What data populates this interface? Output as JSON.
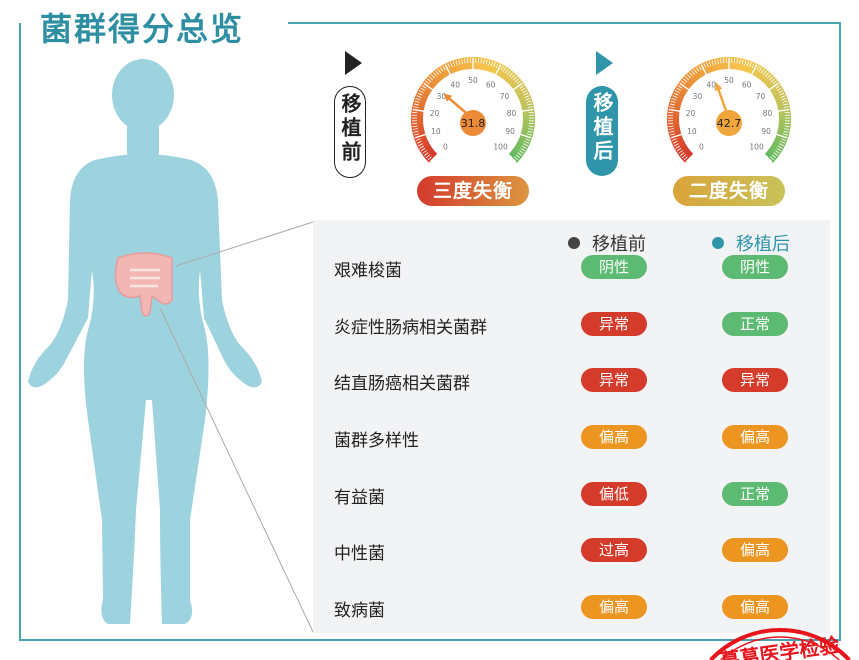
{
  "title": "菌群得分总览",
  "colors": {
    "accent": "#2e8fa3",
    "body": "#9dd3de",
    "green": "#5dba72",
    "red": "#d53b2b",
    "orange": "#ec9520",
    "panel": "#f2f3f5"
  },
  "before": {
    "tag": "移植前",
    "score": 31.8,
    "score_label": "31.8",
    "status": "三度失衡",
    "status_gradient": [
      "#d33a2c",
      "#dd9640"
    ],
    "needle_color": "#ec8a35"
  },
  "after": {
    "tag": "移植后",
    "score": 42.7,
    "score_label": "42.7",
    "status": "二度失衡",
    "status_gradient": [
      "#d9a43a",
      "#c9c25a"
    ],
    "needle_color": "#f0a63a"
  },
  "gauge": {
    "min": 0,
    "max": 100,
    "tick_labels": [
      "0",
      "10",
      "20",
      "30",
      "40",
      "50",
      "60",
      "70",
      "80",
      "90",
      "100"
    ]
  },
  "legend": {
    "before": "移植前",
    "after": "移植后",
    "before_color": "#444444",
    "after_color": "#2e95aa"
  },
  "rows": [
    {
      "label": "艰难梭菌",
      "before": "阴性",
      "before_type": "green",
      "after": "阴性",
      "after_type": "green"
    },
    {
      "label": "炎症性肠病相关菌群",
      "before": "异常",
      "before_type": "red",
      "after": "正常",
      "after_type": "green"
    },
    {
      "label": "结直肠癌相关菌群",
      "before": "异常",
      "before_type": "red",
      "after": "异常",
      "after_type": "red"
    },
    {
      "label": "菌群多样性",
      "before": "偏高",
      "before_type": "orange",
      "after": "偏高",
      "after_type": "orange"
    },
    {
      "label": "有益菌",
      "before": "偏低",
      "before_type": "red",
      "after": "正常",
      "after_type": "green"
    },
    {
      "label": "中性菌",
      "before": "过高",
      "before_type": "red",
      "after": "偏高",
      "after_type": "orange"
    },
    {
      "label": "致病菌",
      "before": "偏高",
      "before_type": "orange",
      "after": "偏高",
      "after_type": "orange"
    }
  ],
  "stamp": {
    "text": "…葛医学检验…",
    "color": "#e8141c"
  }
}
